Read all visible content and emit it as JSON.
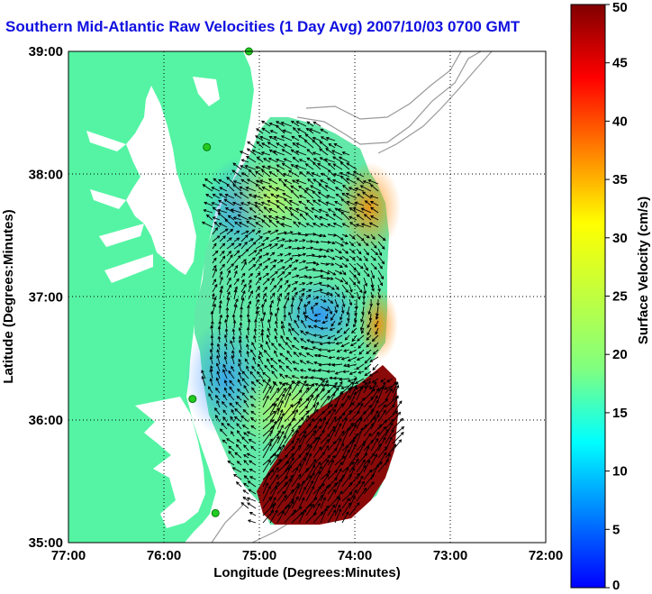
{
  "title": "Southern Mid-Atlantic Raw Velocities (1 Day Avg) 2007/10/03 0700 GMT",
  "axes": {
    "xlabel": "Longitude (Degrees:Minutes)",
    "ylabel": "Latitude (Degrees:Minutes)",
    "x_ticks": [
      "77:00",
      "76:00",
      "75:00",
      "74:00",
      "73:00",
      "72:00"
    ],
    "y_ticks": [
      "39:00",
      "38:00",
      "37:00",
      "36:00",
      "35:00"
    ],
    "x_range": [
      -77.0,
      -72.0
    ],
    "y_range": [
      35.0,
      39.0
    ]
  },
  "colorbar": {
    "label": "Surface Velocity (cm/s)",
    "min": 0,
    "max": 50,
    "ticks": [
      "0",
      "5",
      "10",
      "15",
      "20",
      "25",
      "30",
      "35",
      "40",
      "45",
      "50"
    ],
    "colormap": "jet"
  },
  "colors": {
    "land": "#55f4a4",
    "title": "#1010e0",
    "station": "#22cc22",
    "isobath": "#9a9a9a"
  },
  "markers": [
    {
      "name": "station",
      "lon": -75.11,
      "lat": 39.0
    },
    {
      "name": "station",
      "lon": -75.55,
      "lat": 38.22
    },
    {
      "name": "station",
      "lon": -75.7,
      "lat": 36.17
    },
    {
      "name": "station",
      "lon": -75.46,
      "lat": 35.24
    }
  ]
}
